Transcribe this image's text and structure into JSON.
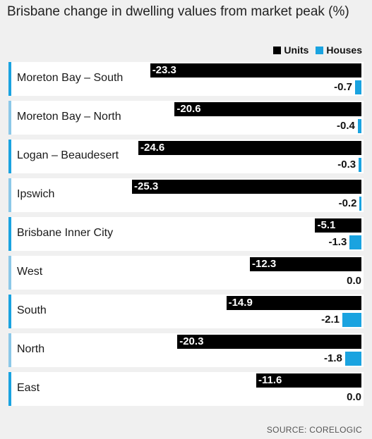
{
  "colors": {
    "units": "#000000",
    "houses": "#1aa3e0",
    "accent": "#1aa3e0"
  },
  "chart_data": {
    "type": "bar",
    "title": "Brisbane change in dwelling values from market peak (%)",
    "orientation": "horizontal",
    "categories": [
      "Moreton Bay – South",
      "Moreton Bay – North",
      "Logan – Beaudesert",
      "Ipswich",
      "Brisbane Inner City",
      "West",
      "South",
      "North",
      "East"
    ],
    "series": [
      {
        "name": "Units",
        "values": [
          -23.3,
          -20.6,
          -24.6,
          -25.3,
          -5.1,
          -12.3,
          -14.9,
          -20.3,
          -11.6
        ]
      },
      {
        "name": "Houses",
        "values": [
          -0.7,
          -0.4,
          -0.3,
          -0.2,
          -1.3,
          0.0,
          -2.1,
          -1.8,
          0.0
        ]
      }
    ],
    "value_labels": {
      "units": [
        "-23.3",
        "-20.6",
        "-24.6",
        "-25.3",
        "-5.1",
        "-12.3",
        "-14.9",
        "-20.3",
        "-11.6"
      ],
      "houses": [
        "-0.7",
        "-0.4",
        "-0.3",
        "-0.2",
        "-1.3",
        "0.0",
        "-2.1",
        "-1.8",
        "0.0"
      ]
    },
    "xlim": [
      -25.3,
      0
    ],
    "legend": "top-right",
    "grid": false
  },
  "source": "SOURCE: CORELOGIC"
}
